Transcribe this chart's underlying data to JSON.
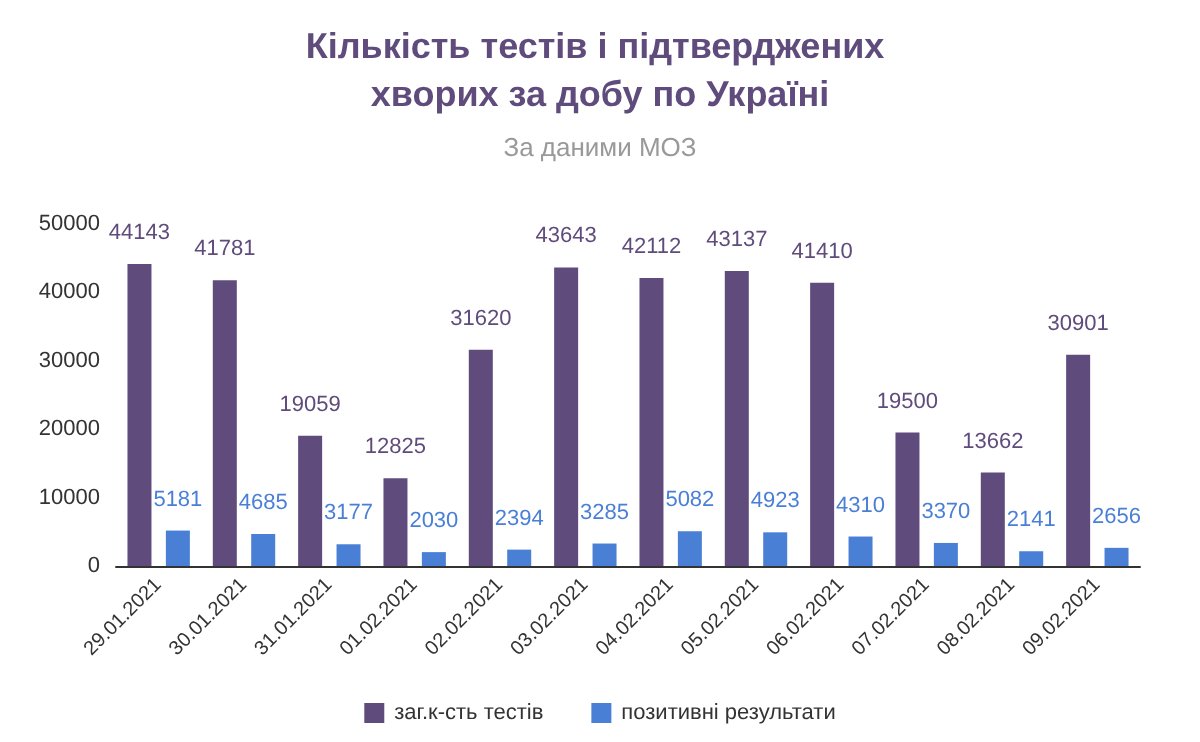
{
  "chart_data": {
    "type": "bar",
    "title": "Кількість тестів і підтверджених хворих за добу по Україні",
    "subtitle": "За даними МОЗ",
    "categories": [
      "29.01.2021",
      "30.01.2021",
      "31.01.2021",
      "01.02.2021",
      "02.02.2021",
      "03.02.2021",
      "04.02.2021",
      "05.02.2021",
      "06.02.2021",
      "07.02.2021",
      "08.02.2021",
      "09.02.2021"
    ],
    "series": [
      {
        "name": "заг.к-сть тестів",
        "color": "#5f4b7c",
        "values": [
          44143,
          41781,
          19059,
          12825,
          31620,
          43643,
          42112,
          43137,
          41410,
          19500,
          13662,
          30901
        ]
      },
      {
        "name": "позитивні результати",
        "color": "#4a7fd6",
        "values": [
          5181,
          4685,
          3177,
          2030,
          2394,
          3285,
          5082,
          4923,
          4310,
          3370,
          2141,
          2656
        ]
      }
    ],
    "ylim": [
      0,
      50000
    ],
    "yticks": [
      0,
      10000,
      20000,
      30000,
      40000,
      50000
    ],
    "grid": false,
    "legend": "bottom",
    "data_labels": true
  }
}
